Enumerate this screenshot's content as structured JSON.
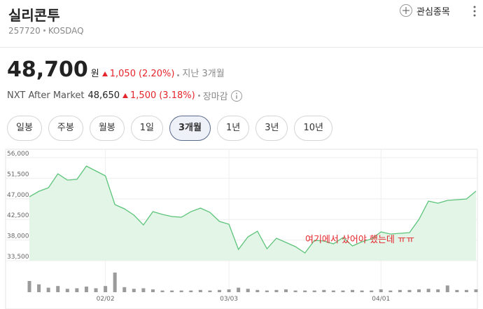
{
  "header": {
    "title": "실리콘투",
    "code": "257720",
    "market": "KOSDAQ",
    "watchlist": "관심종목"
  },
  "price": {
    "current": "48,700",
    "unit": "원",
    "change": "1,050",
    "change_pct": "(2.20%)",
    "period": "지난 3개월"
  },
  "after_market": {
    "label": "NXT After Market",
    "price": "48,650",
    "change": "1,500",
    "change_pct": "(3.18%)",
    "status": "장마감"
  },
  "tabs": [
    "일봉",
    "주봉",
    "월봉",
    "1일",
    "3개월",
    "1년",
    "3년",
    "10년"
  ],
  "active_tab": 4,
  "chart_data": {
    "type": "line",
    "categories": [
      null,
      null,
      null,
      null,
      null,
      null,
      null,
      null,
      "02/02",
      null,
      null,
      null,
      null,
      null,
      null,
      null,
      null,
      null,
      null,
      null,
      null,
      "03/03",
      null,
      null,
      null,
      null,
      null,
      null,
      null,
      null,
      null,
      null,
      null,
      null,
      null,
      null,
      null,
      "04/01",
      null,
      null,
      null,
      null,
      null,
      null,
      null,
      null,
      null,
      null
    ],
    "values": [
      47450,
      48650,
      49420,
      52480,
      51100,
      51250,
      54160,
      53090,
      52020,
      45750,
      44830,
      43450,
      41300,
      44210,
      43600,
      43140,
      42990,
      44210,
      44980,
      44060,
      42070,
      41460,
      35950,
      38700,
      39930,
      36100,
      38400,
      37480,
      36560,
      35180,
      37940,
      37790,
      37170,
      38550,
      36710,
      37630,
      38250,
      39780,
      39320,
      39470,
      39620,
      42530,
      46510,
      46050,
      46660,
      46820,
      46970,
      48700
    ],
    "color": "#5cc47a",
    "fill": "#e3f5e7",
    "ylim": [
      33500,
      56000
    ],
    "yticks": [
      {
        "value": 33500,
        "label": "33,500"
      },
      {
        "value": 38000,
        "label": "38,000"
      },
      {
        "value": 42500,
        "label": "42,500"
      },
      {
        "value": 47000,
        "label": "47,000"
      },
      {
        "value": 51500,
        "label": "51,500"
      },
      {
        "value": 56000,
        "label": "56,000"
      }
    ],
    "grid": true,
    "annotation": "여기에서 샀어야 했는데 ㅠㅠ",
    "volume": {
      "values": [
        20,
        14,
        8,
        11,
        6,
        7,
        10,
        7,
        11,
        35,
        9,
        6,
        7,
        5,
        3,
        3,
        3,
        3,
        4,
        3,
        4,
        5,
        8,
        6,
        4,
        3,
        4,
        5,
        3,
        3,
        3,
        4,
        3,
        3,
        4,
        3,
        3,
        5,
        3,
        4,
        4,
        5,
        6,
        5,
        12,
        4,
        4,
        5
      ],
      "color": "#9b9b9b",
      "ylim": [
        0,
        40
      ]
    }
  }
}
